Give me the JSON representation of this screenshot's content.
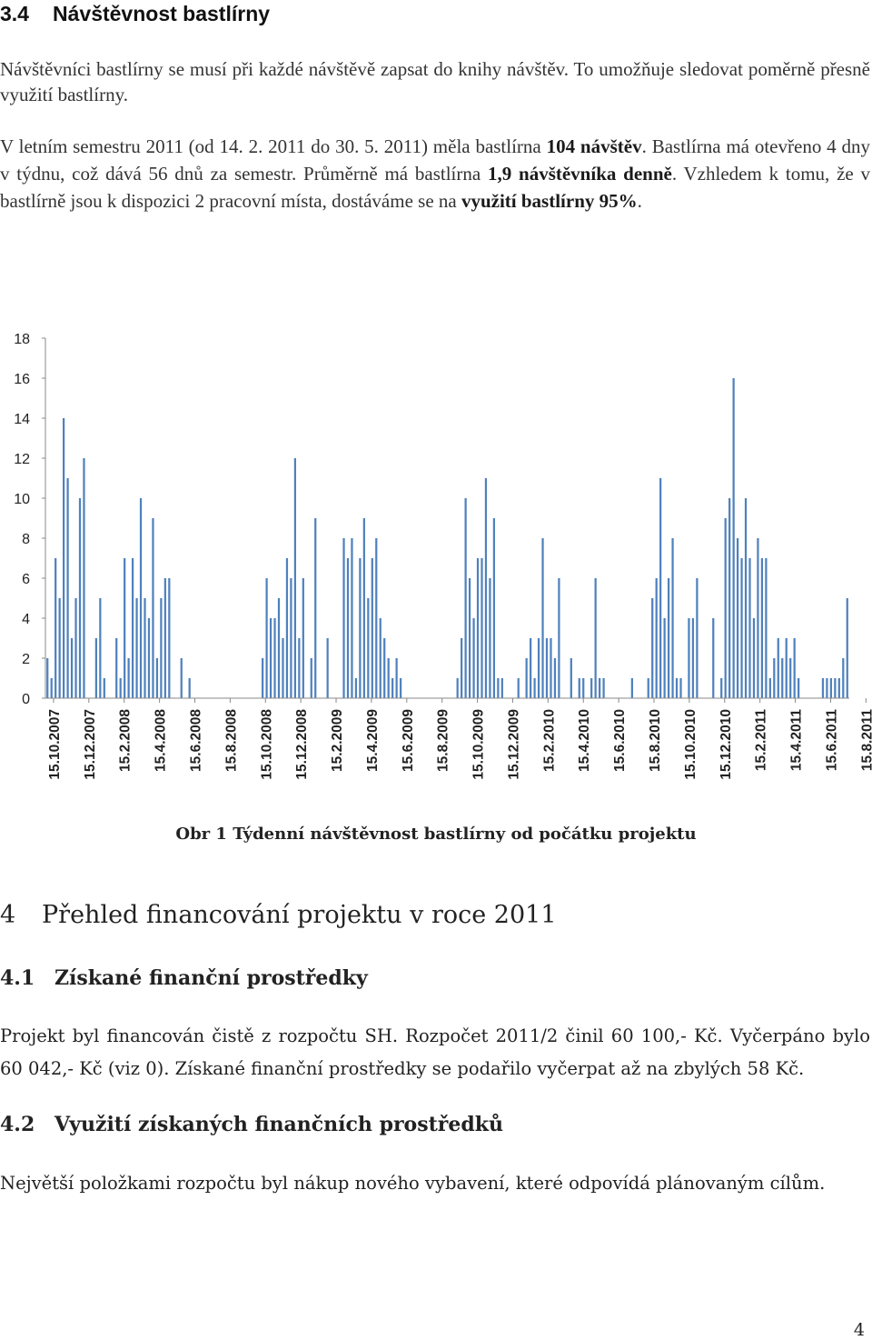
{
  "section_3_4": {
    "number": "3.4",
    "title": "Návštěvnost bastlírny"
  },
  "paragraph_1": {
    "text": "Návštěvníci bastlírny se musí při každé návštěvě zapsat do knihy návštěv. To umožňuje sledovat poměrně přesně využití bastlírny."
  },
  "paragraph_2": {
    "t1": "V letním semestru 2011 (od 14. 2. 2011 do 30. 5. 2011) měla bastlírna ",
    "b1": "104 návštěv",
    "t2": ". Bastlírna má otevřeno 4 dny v týdnu, což dává 56 dnů za semestr. Průměrně má bastlírna ",
    "b2": "1,9 návštěvníka denně",
    "t3": ". Vzhledem k tomu, že v bastlírně jsou k dispozici 2 pracovní místa, dostáváme se na ",
    "b3": "využití bastlírny 95%",
    "t4": "."
  },
  "chart_data": {
    "type": "bar",
    "ylim": [
      0,
      18
    ],
    "yticks": [
      0,
      2,
      4,
      6,
      8,
      10,
      12,
      14,
      16,
      18
    ],
    "grid": false,
    "legend": "none",
    "bar_color": "#4f81bd",
    "x_tick_labels": [
      "15.10.2007",
      "15.12.2007",
      "15.2.2008",
      "15.4.2008",
      "15.6.2008",
      "15.8.2008",
      "15.10.2008",
      "15.12.2008",
      "15.2.2009",
      "15.4.2009",
      "15.6.2009",
      "15.8.2009",
      "15.10.2009",
      "15.12.2009",
      "15.2.2010",
      "15.4.2010",
      "15.6.2010",
      "15.8.2010",
      "15.10.2010",
      "15.12.2010",
      "15.2.2011",
      "15.4.2011",
      "15.6.2011",
      "15.8.2011"
    ],
    "weeks_per_tick": 8.7,
    "values": [
      2,
      1,
      7,
      5,
      14,
      11,
      3,
      5,
      10,
      12,
      0,
      0,
      3,
      5,
      1,
      0,
      0,
      3,
      1,
      7,
      2,
      7,
      5,
      10,
      5,
      4,
      9,
      2,
      5,
      6,
      6,
      0,
      0,
      2,
      0,
      1,
      0,
      0,
      0,
      0,
      0,
      0,
      0,
      0,
      0,
      0,
      0,
      0,
      0,
      0,
      0,
      0,
      0,
      2,
      6,
      4,
      4,
      5,
      3,
      7,
      6,
      12,
      3,
      6,
      0,
      2,
      9,
      0,
      0,
      3,
      0,
      0,
      0,
      8,
      7,
      8,
      1,
      7,
      9,
      5,
      7,
      8,
      4,
      3,
      2,
      1,
      2,
      1,
      0,
      0,
      0,
      0,
      0,
      0,
      0,
      0,
      0,
      0,
      0,
      0,
      0,
      1,
      3,
      10,
      6,
      4,
      7,
      7,
      11,
      6,
      9,
      1,
      1,
      0,
      0,
      0,
      1,
      0,
      2,
      3,
      1,
      3,
      8,
      3,
      3,
      2,
      6,
      0,
      0,
      2,
      0,
      1,
      1,
      0,
      1,
      6,
      1,
      1,
      0,
      0,
      0,
      0,
      0,
      0,
      1,
      0,
      0,
      0,
      1,
      5,
      6,
      11,
      4,
      6,
      8,
      1,
      1,
      0,
      4,
      4,
      6,
      0,
      0,
      0,
      4,
      0,
      1,
      9,
      10,
      16,
      8,
      7,
      10,
      7,
      4,
      8,
      7,
      7,
      1,
      2,
      3,
      2,
      3,
      2,
      3,
      1,
      0,
      0,
      0,
      0,
      0,
      1,
      1,
      1,
      1,
      1,
      2,
      5
    ]
  },
  "figure_caption": {
    "text": "Obr 1 Týdenní návštěvnost bastlírny od počátku projektu"
  },
  "section_4": {
    "number": "4",
    "title": "Přehled financování projektu v roce 2011"
  },
  "section_4_1": {
    "number": "4.1",
    "title": "Získané finanční prostředky"
  },
  "paragraph_3": {
    "text": "Projekt byl financován čistě z rozpočtu SH. Rozpočet 2011/2 činil 60 100,- Kč. Vyčerpáno bylo 60 042,- Kč (viz 0). Získané finanční prostředky se podařilo vyčerpat až na zbylých 58 Kč."
  },
  "section_4_2": {
    "number": "4.2",
    "title": "Využití získaných finančních prostředků"
  },
  "paragraph_4": {
    "text": "Největší položkami rozpočtu byl nákup nového vybavení, které odpovídá plánovaným cílům."
  },
  "page_number": "4"
}
